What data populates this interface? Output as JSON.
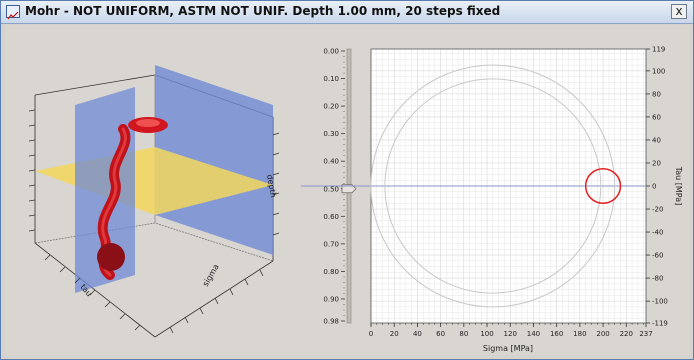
{
  "window": {
    "title": "Mohr - NOT UNIFORM, ASTM NOT UNIF. Depth 1.00 mm, 20 steps fixed",
    "title_icon": "chart-icon",
    "close_label": "x"
  },
  "plot3d": {
    "axis_labels": {
      "tau": "tau",
      "sigma": "sigma",
      "depth": "depth"
    },
    "colors": {
      "plane_vertical": "#6f89d6",
      "plane_horizontal": "#f2d75c",
      "tube": "#c0121a"
    }
  },
  "slider": {
    "ticks": [
      "0.00",
      "0.10",
      "0.20",
      "0.30",
      "0.40",
      "0.50",
      "0.60",
      "0.70",
      "0.80",
      "0.90",
      "0.98"
    ],
    "value": 0.5
  },
  "chart_data": {
    "type": "scatter",
    "title": "",
    "xlabel": "Sigma [MPa]",
    "ylabel": "Tau [MPa]",
    "xlim": [
      0,
      237
    ],
    "ylim": [
      -119,
      119
    ],
    "x_ticks": [
      "0",
      "20",
      "40",
      "60",
      "80",
      "100",
      "120",
      "140",
      "160",
      "180",
      "200",
      "220",
      "237"
    ],
    "y_ticks": [
      "119",
      "100",
      "80",
      "60",
      "40",
      "20",
      "0",
      "-20",
      "-40",
      "-60",
      "-80",
      "-100",
      "-119"
    ],
    "grid": true,
    "series": [
      {
        "kind": "circle",
        "center": [
          105,
          0
        ],
        "radius": 105,
        "color": "#c8c8c8"
      },
      {
        "kind": "circle",
        "center": [
          105,
          0
        ],
        "radius": 93,
        "color": "#c8c8c8"
      },
      {
        "kind": "circle",
        "center": [
          200,
          0
        ],
        "radius": 15,
        "color": "#e02020"
      }
    ],
    "reference_line_y": 0
  }
}
